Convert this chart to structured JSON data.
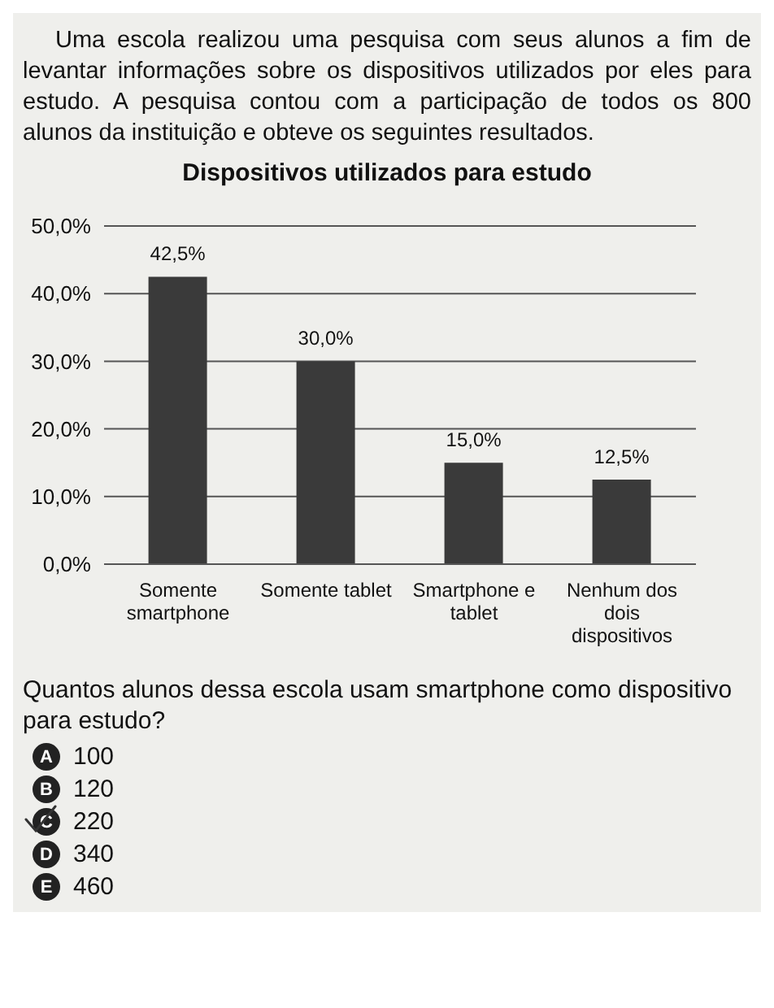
{
  "chart_data": {
    "type": "bar",
    "subtitle": "Uma escola realizou uma pesquisa com seus alunos a fim de levantar informações sobre os dispositivos utilizados por eles para estudo. A pesquisa contou com a participação de todos os 800 alunos da instituição e obteve os seguintes resultados.",
    "title": "Dispositivos utilizados para estudo",
    "categories": [
      "Somente smartphone",
      "Somente tablet",
      "Smartphone e tablet",
      "Nenhum dos dois dispositivos"
    ],
    "values": [
      42.5,
      30,
      15,
      12.5
    ],
    "value_labels": [
      "42,5%",
      "30,0%",
      "15,0%",
      "12,5%"
    ],
    "color": "#3a3a3a",
    "ylim": [
      0,
      50
    ],
    "yticks": [
      {
        "value": 0,
        "label": "0,0%"
      },
      {
        "value": 10,
        "label": "10,0%"
      },
      {
        "value": 20,
        "label": "20,0%"
      },
      {
        "value": 30,
        "label": "30,0%"
      },
      {
        "value": 40,
        "label": "40,0%"
      },
      {
        "value": 50,
        "label": "50,0%"
      }
    ],
    "grid": "y",
    "annotations": [
      "Quantos alunos dessa escola usam smartphone como dispositivo para estudo?",
      "A 100",
      "B 120",
      "C 220",
      "D 340",
      "E 460"
    ]
  }
}
